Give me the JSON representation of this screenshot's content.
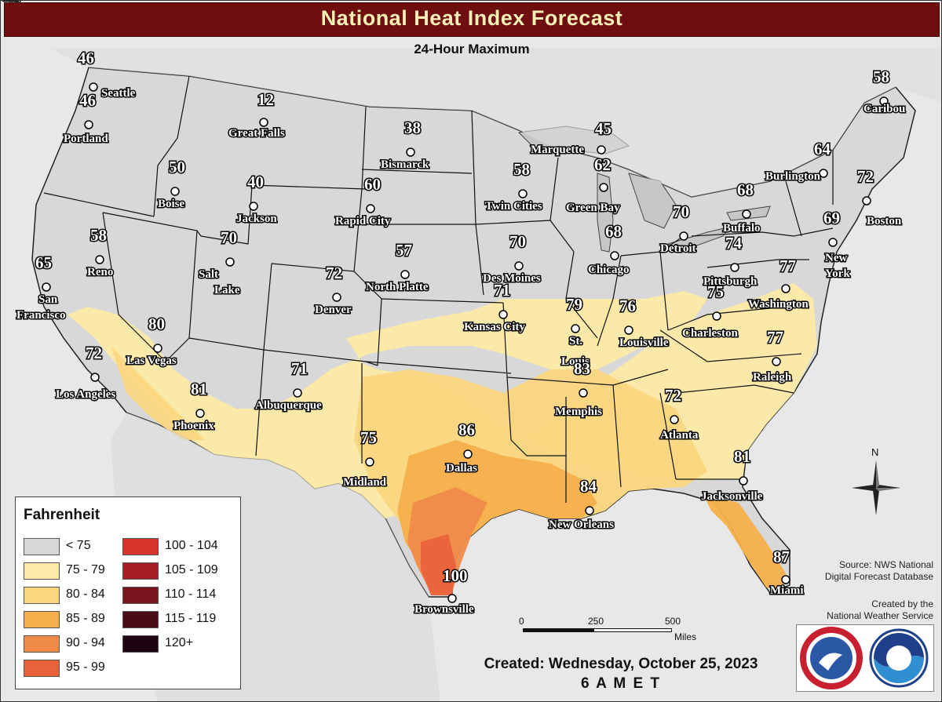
{
  "header": {
    "title": "National Heat Index Forecast",
    "subtitle": "24-Hour Maximum"
  },
  "legend": {
    "title": "Fahrenheit",
    "items": [
      {
        "label": "< 75",
        "color": "#d8d8d8"
      },
      {
        "label": "75 - 79",
        "color": "#fdeaa8"
      },
      {
        "label": "80 - 84",
        "color": "#fbd67f"
      },
      {
        "label": "85 - 89",
        "color": "#f5b04b"
      },
      {
        "label": "90 - 94",
        "color": "#f08b4a"
      },
      {
        "label": "95 - 99",
        "color": "#e9623b"
      },
      {
        "label": "100 - 104",
        "color": "#d8342a"
      },
      {
        "label": "105 - 109",
        "color": "#a61e24"
      },
      {
        "label": "110 - 114",
        "color": "#7a1520"
      },
      {
        "label": "115 - 119",
        "color": "#4c0c17"
      },
      {
        "label": "120+",
        "color": "#1e0410"
      }
    ]
  },
  "cities": [
    {
      "name": "Seattle",
      "value": "46"
    },
    {
      "name": "Portland",
      "value": "46"
    },
    {
      "name": "Great Falls",
      "value": "12"
    },
    {
      "name": "Boise",
      "value": "50"
    },
    {
      "name": "Jackson",
      "value": "40"
    },
    {
      "name": "Bismarck",
      "value": "38"
    },
    {
      "name": "Rapid City",
      "value": "60"
    },
    {
      "name": "Reno",
      "value": "58"
    },
    {
      "name": "San Francisco",
      "value": "65"
    },
    {
      "name": "Salt Lake City",
      "value": "70"
    },
    {
      "name": "Denver",
      "value": "72"
    },
    {
      "name": "North Platte",
      "value": "57"
    },
    {
      "name": "Las Vegas",
      "value": "80"
    },
    {
      "name": "Los Angeles",
      "value": "72"
    },
    {
      "name": "Phoenix",
      "value": "81"
    },
    {
      "name": "Albuquerque",
      "value": "71"
    },
    {
      "name": "Midland",
      "value": "75"
    },
    {
      "name": "Dallas",
      "value": "86"
    },
    {
      "name": "Brownsville",
      "value": "100"
    },
    {
      "name": "Kansas City",
      "value": "71"
    },
    {
      "name": "Des Moines",
      "value": "70"
    },
    {
      "name": "Twin Cities",
      "value": "58"
    },
    {
      "name": "Marquette",
      "value": "45"
    },
    {
      "name": "Green Bay",
      "value": "62"
    },
    {
      "name": "Chicago",
      "value": "68"
    },
    {
      "name": "St. Louis",
      "value": "79"
    },
    {
      "name": "Memphis",
      "value": "83"
    },
    {
      "name": "New Orleans",
      "value": "84"
    },
    {
      "name": "Louisville",
      "value": "76"
    },
    {
      "name": "Detroit",
      "value": "70"
    },
    {
      "name": "Atlanta",
      "value": "72"
    },
    {
      "name": "Jacksonville",
      "value": "81"
    },
    {
      "name": "Miami",
      "value": "87"
    },
    {
      "name": "Charleston",
      "value": "75"
    },
    {
      "name": "Pittsburgh",
      "value": "74"
    },
    {
      "name": "Raleigh",
      "value": "77"
    },
    {
      "name": "Washington",
      "value": "77"
    },
    {
      "name": "Buffalo",
      "value": "68"
    },
    {
      "name": "New York",
      "value": "69"
    },
    {
      "name": "Burlington",
      "value": "64"
    },
    {
      "name": "Boston",
      "value": "72"
    },
    {
      "name": "Caribou",
      "value": "58"
    }
  ],
  "scale": {
    "ticks": [
      "0",
      "250",
      "500"
    ],
    "unit": "Miles"
  },
  "compass": {
    "north_label": "N"
  },
  "source": {
    "line1": "Source: NWS National",
    "line2": "Digital Forecast Database"
  },
  "credit": {
    "line1": "Created by the",
    "line2": "National Weather Service"
  },
  "footer": {
    "created": "Created: Wednesday, October 25, 2023",
    "time": "6 A M E T"
  }
}
